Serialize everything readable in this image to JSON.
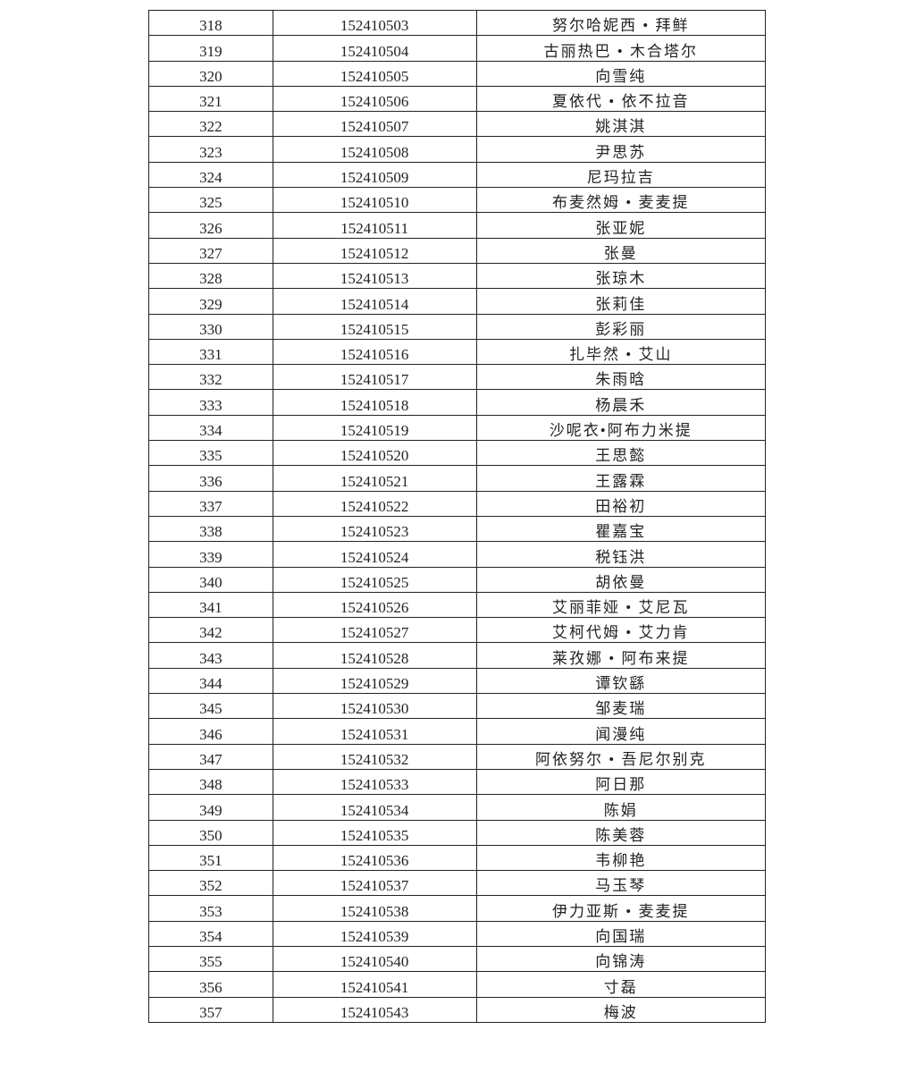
{
  "table": {
    "rows": [
      [
        "318",
        "152410503",
        "努尔哈妮西 • 拜鲜"
      ],
      [
        "319",
        "152410504",
        "古丽热巴 • 木合塔尔"
      ],
      [
        "320",
        "152410505",
        "向雪纯"
      ],
      [
        "321",
        "152410506",
        "夏依代 • 依不拉音"
      ],
      [
        "322",
        "152410507",
        "姚淇淇"
      ],
      [
        "323",
        "152410508",
        "尹思苏"
      ],
      [
        "324",
        "152410509",
        "尼玛拉吉"
      ],
      [
        "325",
        "152410510",
        "布麦然姆 • 麦麦提"
      ],
      [
        "326",
        "152410511",
        "张亚妮"
      ],
      [
        "327",
        "152410512",
        "张曼"
      ],
      [
        "328",
        "152410513",
        "张琼木"
      ],
      [
        "329",
        "152410514",
        "张莉佳"
      ],
      [
        "330",
        "152410515",
        "彭彩丽"
      ],
      [
        "331",
        "152410516",
        "扎毕然 • 艾山"
      ],
      [
        "332",
        "152410517",
        "朱雨晗"
      ],
      [
        "333",
        "152410518",
        "杨晨禾"
      ],
      [
        "334",
        "152410519",
        "沙呢衣•阿布力米提"
      ],
      [
        "335",
        "152410520",
        "王思懿"
      ],
      [
        "336",
        "152410521",
        "王露霖"
      ],
      [
        "337",
        "152410522",
        "田裕初"
      ],
      [
        "338",
        "152410523",
        "瞿嘉宝"
      ],
      [
        "339",
        "152410524",
        "税钰洪"
      ],
      [
        "340",
        "152410525",
        "胡依曼"
      ],
      [
        "341",
        "152410526",
        "艾丽菲娅 • 艾尼瓦"
      ],
      [
        "342",
        "152410527",
        "艾柯代姆 • 艾力肯"
      ],
      [
        "343",
        "152410528",
        "莱孜娜 • 阿布来提"
      ],
      [
        "344",
        "152410529",
        "谭钦繇"
      ],
      [
        "345",
        "152410530",
        "邹麦瑞"
      ],
      [
        "346",
        "152410531",
        "闻漫纯"
      ],
      [
        "347",
        "152410532",
        "阿依努尔 • 吾尼尔别克"
      ],
      [
        "348",
        "152410533",
        "阿日那"
      ],
      [
        "349",
        "152410534",
        "陈娟"
      ],
      [
        "350",
        "152410535",
        "陈美蓉"
      ],
      [
        "351",
        "152410536",
        "韦柳艳"
      ],
      [
        "352",
        "152410537",
        "马玉琴"
      ],
      [
        "353",
        "152410538",
        "伊力亚斯 • 麦麦提"
      ],
      [
        "354",
        "152410539",
        "向国瑞"
      ],
      [
        "355",
        "152410540",
        "向锦涛"
      ],
      [
        "356",
        "152410541",
        "寸磊"
      ],
      [
        "357",
        "152410543",
        "梅波"
      ]
    ]
  }
}
